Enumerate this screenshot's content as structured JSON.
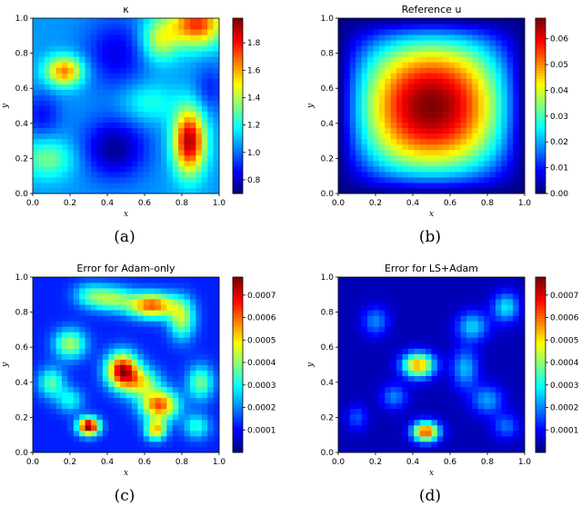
{
  "colormap": "jet",
  "colormap_stops": [
    "#000080",
    "#0000ff",
    "#0080ff",
    "#00ffff",
    "#80ff80",
    "#ffff00",
    "#ff8000",
    "#ff0000",
    "#800000"
  ],
  "axis_color": "#000000",
  "chart_data": [
    {
      "type": "heatmap",
      "panel_label": "(a)",
      "title": "κ",
      "xlabel": "x",
      "ylabel": "y",
      "xlim": [
        0.0,
        1.0
      ],
      "ylim": [
        0.0,
        1.0
      ],
      "xticks": [
        "0.0",
        "0.2",
        "0.4",
        "0.6",
        "0.8",
        "1.0"
      ],
      "yticks": [
        "0.0",
        "0.2",
        "0.4",
        "0.6",
        "0.8",
        "1.0"
      ],
      "grid_size": 32,
      "clim": [
        0.7,
        1.98
      ],
      "colorbar_ticks": [
        "1.8",
        "1.6",
        "1.4",
        "1.2",
        "1.0",
        "0.8"
      ],
      "colorbar_tick_values": [
        1.8,
        1.6,
        1.4,
        1.2,
        1.0,
        0.8
      ],
      "field": {
        "base": 1.05,
        "bumps": [
          {
            "x": 0.84,
            "y": 0.3,
            "sx": 0.06,
            "sy": 0.13,
            "a": 0.88
          },
          {
            "x": 0.17,
            "y": 0.7,
            "sx": 0.07,
            "sy": 0.06,
            "a": 0.62
          },
          {
            "x": 0.88,
            "y": 0.97,
            "sx": 0.1,
            "sy": 0.09,
            "a": 0.72
          },
          {
            "x": 0.68,
            "y": 0.88,
            "sx": 0.07,
            "sy": 0.09,
            "a": 0.38
          },
          {
            "x": 0.08,
            "y": 0.2,
            "sx": 0.1,
            "sy": 0.08,
            "a": 0.28
          },
          {
            "x": 0.62,
            "y": 0.52,
            "sx": 0.1,
            "sy": 0.08,
            "a": 0.18
          },
          {
            "x": 0.44,
            "y": 0.26,
            "sx": 0.12,
            "sy": 0.12,
            "a": -0.32
          },
          {
            "x": 0.45,
            "y": 0.8,
            "sx": 0.12,
            "sy": 0.14,
            "a": -0.22
          },
          {
            "x": 0.05,
            "y": 0.45,
            "sx": 0.07,
            "sy": 0.09,
            "a": -0.18
          },
          {
            "x": 0.95,
            "y": 0.6,
            "sx": 0.06,
            "sy": 0.1,
            "a": -0.15
          }
        ]
      }
    },
    {
      "type": "heatmap",
      "panel_label": "(b)",
      "title": "Reference u",
      "xlabel": "x",
      "ylabel": "y",
      "xlim": [
        0.0,
        1.0
      ],
      "ylim": [
        0.0,
        1.0
      ],
      "xticks": [
        "0.0",
        "0.2",
        "0.4",
        "0.6",
        "0.8",
        "1.0"
      ],
      "yticks": [
        "0.0",
        "0.2",
        "0.4",
        "0.6",
        "0.8",
        "1.0"
      ],
      "grid_size": 32,
      "clim": [
        0.0,
        0.068
      ],
      "colorbar_ticks": [
        "0.06",
        "0.05",
        "0.04",
        "0.03",
        "0.02",
        "0.01",
        "0.00"
      ],
      "colorbar_tick_values": [
        0.06,
        0.05,
        0.04,
        0.03,
        0.02,
        0.01,
        0.0
      ],
      "field": {
        "kind": "sine_product",
        "amplitude": 0.068,
        "peak": [
          0.48,
          0.48
        ]
      }
    },
    {
      "type": "heatmap",
      "panel_label": "(c)",
      "title": "Error for Adam-only",
      "xlabel": "x",
      "ylabel": "y",
      "xlim": [
        0.0,
        1.0
      ],
      "ylim": [
        0.0,
        1.0
      ],
      "xticks": [
        "0.0",
        "0.2",
        "0.4",
        "0.6",
        "0.8",
        "1.0"
      ],
      "yticks": [
        "0.0",
        "0.2",
        "0.4",
        "0.6",
        "0.8",
        "1.0"
      ],
      "grid_size": 32,
      "clim": [
        0.0,
        0.00078
      ],
      "colorbar_ticks": [
        "0.0007",
        "0.0006",
        "0.0005",
        "0.0004",
        "0.0003",
        "0.0002",
        "0.0001"
      ],
      "colorbar_tick_values": [
        0.0007,
        0.0006,
        0.0005,
        0.0004,
        0.0003,
        0.0002,
        0.0001
      ],
      "field": {
        "base": 0.00012,
        "bumps": [
          {
            "x": 0.48,
            "y": 0.47,
            "sx": 0.06,
            "sy": 0.07,
            "a": 0.0006
          },
          {
            "x": 0.58,
            "y": 0.4,
            "sx": 0.07,
            "sy": 0.06,
            "a": 0.0003
          },
          {
            "x": 0.68,
            "y": 0.27,
            "sx": 0.07,
            "sy": 0.06,
            "a": 0.0005
          },
          {
            "x": 0.3,
            "y": 0.15,
            "sx": 0.04,
            "sy": 0.035,
            "a": 0.00068
          },
          {
            "x": 0.66,
            "y": 0.13,
            "sx": 0.04,
            "sy": 0.04,
            "a": 0.0004
          },
          {
            "x": 0.64,
            "y": 0.84,
            "sx": 0.09,
            "sy": 0.05,
            "a": 0.0005
          },
          {
            "x": 0.42,
            "y": 0.88,
            "sx": 0.08,
            "sy": 0.05,
            "a": 0.00028
          },
          {
            "x": 0.8,
            "y": 0.76,
            "sx": 0.05,
            "sy": 0.08,
            "a": 0.0003
          },
          {
            "x": 0.2,
            "y": 0.62,
            "sx": 0.06,
            "sy": 0.06,
            "a": 0.0003
          },
          {
            "x": 0.1,
            "y": 0.4,
            "sx": 0.05,
            "sy": 0.06,
            "a": 0.00024
          },
          {
            "x": 0.9,
            "y": 0.4,
            "sx": 0.05,
            "sy": 0.07,
            "a": 0.00026
          },
          {
            "x": 0.2,
            "y": 0.3,
            "sx": 0.05,
            "sy": 0.05,
            "a": 0.00018
          },
          {
            "x": 0.88,
            "y": 0.15,
            "sx": 0.05,
            "sy": 0.05,
            "a": 0.0002
          },
          {
            "x": 0.3,
            "y": 0.9,
            "sx": 0.06,
            "sy": 0.05,
            "a": 0.00016
          }
        ]
      }
    },
    {
      "type": "heatmap",
      "panel_label": "(d)",
      "title": "Error for LS+Adam",
      "xlabel": "x",
      "ylabel": "y",
      "xlim": [
        0.0,
        1.0
      ],
      "ylim": [
        0.0,
        1.0
      ],
      "xticks": [
        "0.0",
        "0.2",
        "0.4",
        "0.6",
        "0.8",
        "1.0"
      ],
      "yticks": [
        "0.0",
        "0.2",
        "0.4",
        "0.6",
        "0.8",
        "1.0"
      ],
      "grid_size": 32,
      "clim": [
        0.0,
        0.00078
      ],
      "colorbar_ticks": [
        "0.0007",
        "0.0006",
        "0.0005",
        "0.0004",
        "0.0003",
        "0.0002",
        "0.0001"
      ],
      "colorbar_tick_values": [
        0.0007,
        0.0006,
        0.0005,
        0.0004,
        0.0003,
        0.0002,
        0.0001
      ],
      "field": {
        "base": 4e-05,
        "bumps": [
          {
            "x": 0.43,
            "y": 0.5,
            "sx": 0.06,
            "sy": 0.05,
            "a": 0.00052
          },
          {
            "x": 0.47,
            "y": 0.12,
            "sx": 0.05,
            "sy": 0.04,
            "a": 0.0006
          },
          {
            "x": 0.68,
            "y": 0.48,
            "sx": 0.05,
            "sy": 0.08,
            "a": 0.0002
          },
          {
            "x": 0.72,
            "y": 0.72,
            "sx": 0.06,
            "sy": 0.06,
            "a": 0.00022
          },
          {
            "x": 0.9,
            "y": 0.83,
            "sx": 0.05,
            "sy": 0.06,
            "a": 0.00024
          },
          {
            "x": 0.3,
            "y": 0.32,
            "sx": 0.05,
            "sy": 0.05,
            "a": 0.00016
          },
          {
            "x": 0.8,
            "y": 0.3,
            "sx": 0.06,
            "sy": 0.06,
            "a": 0.00018
          },
          {
            "x": 0.2,
            "y": 0.75,
            "sx": 0.05,
            "sy": 0.06,
            "a": 0.00016
          },
          {
            "x": 0.9,
            "y": 0.15,
            "sx": 0.05,
            "sy": 0.05,
            "a": 0.00014
          },
          {
            "x": 0.1,
            "y": 0.2,
            "sx": 0.04,
            "sy": 0.05,
            "a": 0.00012
          }
        ]
      }
    }
  ]
}
